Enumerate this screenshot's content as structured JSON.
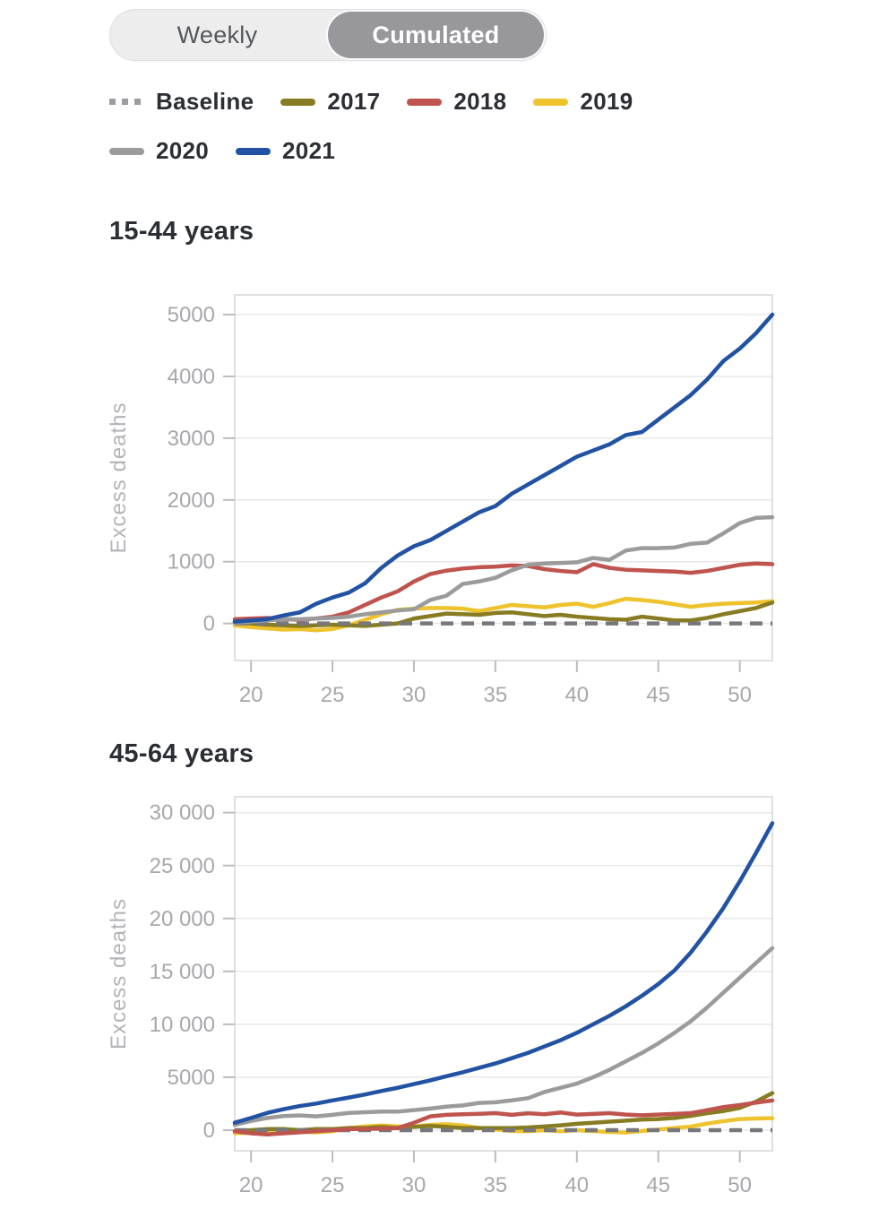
{
  "toggle": {
    "options": [
      {
        "label": "Weekly",
        "selected": false
      },
      {
        "label": "Cumulated",
        "selected": true
      }
    ],
    "colors": {
      "container_bg": "#ededee",
      "selected_bg": "#97979c",
      "selected_text": "#ffffff",
      "unselected_text": "#54575c"
    }
  },
  "legend": {
    "items": [
      {
        "label": "Baseline",
        "color": "#9d9da1",
        "style": "dashed"
      },
      {
        "label": "2017",
        "color": "#877c22",
        "style": "solid"
      },
      {
        "label": "2018",
        "color": "#bf544e",
        "style": "solid"
      },
      {
        "label": "2019",
        "color": "#eec32d",
        "style": "solid"
      },
      {
        "label": "2020",
        "color": "#9b9b9b",
        "style": "solid"
      },
      {
        "label": "2021",
        "color": "#2152a3",
        "style": "solid"
      }
    ]
  },
  "chart_data": [
    {
      "type": "line",
      "title": "15-44 years",
      "ylabel": "Excess deaths",
      "x": [
        19,
        20,
        21,
        22,
        23,
        24,
        25,
        26,
        27,
        28,
        29,
        30,
        31,
        32,
        33,
        34,
        35,
        36,
        37,
        38,
        39,
        40,
        41,
        42,
        43,
        44,
        45,
        46,
        47,
        48,
        49,
        50,
        51,
        52
      ],
      "xticks": [
        20,
        25,
        30,
        35,
        40,
        45,
        50
      ],
      "xtick_labels": [
        "20",
        "25",
        "30",
        "35",
        "40",
        "45",
        "50"
      ],
      "yticks": [
        {
          "value": 0,
          "label": "0"
        },
        {
          "value": 1000,
          "label": "1000"
        },
        {
          "value": 2000,
          "label": "2000"
        },
        {
          "value": 3000,
          "label": "3000"
        },
        {
          "value": 4000,
          "label": "4000"
        },
        {
          "value": 5000,
          "label": "5000"
        }
      ],
      "ylim": [
        -600,
        5320
      ],
      "grid": "horizontal",
      "baseline": 0,
      "baseline_color": "#77777c",
      "series": [
        {
          "name": "2017",
          "color": "#877c22",
          "values": [
            20,
            0,
            -20,
            -30,
            -40,
            -30,
            -20,
            -30,
            -40,
            -20,
            0,
            80,
            120,
            160,
            150,
            140,
            170,
            180,
            150,
            120,
            140,
            110,
            90,
            70,
            60,
            110,
            80,
            50,
            50,
            90,
            150,
            200,
            250,
            340
          ]
        },
        {
          "name": "2018",
          "color": "#bf544e",
          "values": [
            70,
            80,
            90,
            70,
            60,
            80,
            110,
            180,
            300,
            420,
            520,
            680,
            800,
            855,
            890,
            910,
            920,
            940,
            930,
            880,
            850,
            830,
            960,
            900,
            870,
            860,
            850,
            840,
            820,
            850,
            900,
            950,
            970,
            960
          ]
        },
        {
          "name": "2019",
          "color": "#eec32d",
          "values": [
            -30,
            -60,
            -80,
            -100,
            -90,
            -110,
            -90,
            -30,
            60,
            150,
            220,
            240,
            250,
            250,
            240,
            200,
            250,
            300,
            280,
            260,
            300,
            320,
            270,
            330,
            400,
            380,
            350,
            310,
            270,
            300,
            320,
            330,
            340,
            360
          ]
        },
        {
          "name": "2020",
          "color": "#9b9b9b",
          "values": [
            10,
            30,
            50,
            70,
            70,
            80,
            90,
            110,
            150,
            180,
            210,
            230,
            380,
            450,
            640,
            680,
            740,
            860,
            950,
            970,
            980,
            990,
            1060,
            1030,
            1180,
            1220,
            1220,
            1230,
            1290,
            1310,
            1460,
            1625,
            1710,
            1720
          ]
        },
        {
          "name": "2021",
          "color": "#2152a3",
          "values": [
            30,
            50,
            70,
            130,
            180,
            320,
            420,
            500,
            650,
            900,
            1100,
            1250,
            1350,
            1500,
            1650,
            1800,
            1900,
            2100,
            2250,
            2400,
            2550,
            2700,
            2800,
            2900,
            3050,
            3100,
            3300,
            3500,
            3700,
            3950,
            4250,
            4450,
            4700,
            5000
          ]
        }
      ]
    },
    {
      "type": "line",
      "title": "45-64 years",
      "ylabel": "Excess deaths",
      "x": [
        19,
        20,
        21,
        22,
        23,
        24,
        25,
        26,
        27,
        28,
        29,
        30,
        31,
        32,
        33,
        34,
        35,
        36,
        37,
        38,
        39,
        40,
        41,
        42,
        43,
        44,
        45,
        46,
        47,
        48,
        49,
        50,
        51,
        52
      ],
      "xticks": [
        20,
        25,
        30,
        35,
        40,
        45,
        50
      ],
      "xtick_labels": [
        "20",
        "25",
        "30",
        "35",
        "40",
        "45",
        "50"
      ],
      "yticks": [
        {
          "value": 0,
          "label": "0"
        },
        {
          "value": 5000,
          "label": "5000"
        },
        {
          "value": 10000,
          "label": "10 000"
        },
        {
          "value": 15000,
          "label": "15 000"
        },
        {
          "value": 20000,
          "label": "20 000"
        },
        {
          "value": 25000,
          "label": "25 000"
        },
        {
          "value": 30000,
          "label": "30 000"
        }
      ],
      "ylim": [
        -1950,
        31500
      ],
      "grid": "horizontal",
      "baseline": 0,
      "baseline_color": "#77777c",
      "series": [
        {
          "name": "2017",
          "color": "#877c22",
          "values": [
            -100,
            0,
            100,
            100,
            0,
            100,
            100,
            200,
            200,
            300,
            200,
            300,
            400,
            300,
            200,
            200,
            200,
            200,
            250,
            350,
            450,
            600,
            700,
            800,
            900,
            1000,
            1050,
            1150,
            1350,
            1600,
            1800,
            2100,
            2700,
            3500
          ]
        },
        {
          "name": "2018",
          "color": "#bf544e",
          "values": [
            -100,
            -300,
            -400,
            -300,
            -200,
            -100,
            0,
            100,
            100,
            150,
            200,
            700,
            1300,
            1450,
            1500,
            1540,
            1610,
            1450,
            1600,
            1500,
            1670,
            1470,
            1530,
            1610,
            1470,
            1410,
            1470,
            1530,
            1610,
            1890,
            2180,
            2370,
            2600,
            2800
          ]
        },
        {
          "name": "2019",
          "color": "#eec32d",
          "values": [
            -300,
            -240,
            -300,
            -200,
            -150,
            -200,
            -100,
            200,
            350,
            440,
            350,
            350,
            500,
            560,
            440,
            200,
            60,
            -80,
            -100,
            0,
            -100,
            0,
            -100,
            -170,
            -230,
            -80,
            60,
            200,
            340,
            620,
            850,
            1045,
            1100,
            1130
          ]
        },
        {
          "name": "2020",
          "color": "#9b9b9b",
          "values": [
            500,
            860,
            1150,
            1330,
            1390,
            1300,
            1450,
            1630,
            1690,
            1750,
            1750,
            1890,
            2040,
            2220,
            2340,
            2570,
            2630,
            2810,
            3020,
            3600,
            4000,
            4400,
            5000,
            5700,
            6500,
            7300,
            8200,
            9200,
            10300,
            11600,
            13000,
            14400,
            15800,
            17200
          ]
        },
        {
          "name": "2021",
          "color": "#2152a3",
          "values": [
            700,
            1150,
            1630,
            1980,
            2280,
            2510,
            2810,
            3080,
            3370,
            3700,
            4000,
            4350,
            4700,
            5090,
            5470,
            5890,
            6300,
            6800,
            7300,
            7900,
            8500,
            9200,
            10000,
            10800,
            11700,
            12700,
            13800,
            15100,
            16800,
            18800,
            21000,
            23500,
            26200,
            29000
          ]
        }
      ]
    }
  ]
}
